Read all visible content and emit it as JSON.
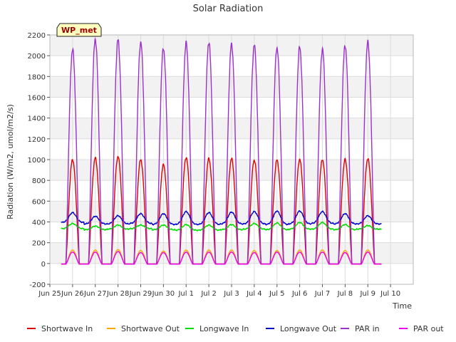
{
  "chart_data": {
    "type": "line",
    "title": "Solar Radiation",
    "xlabel": "Time",
    "ylabel": "Radiation (W/m2, umol/m2/s)",
    "station_label": "WP_met",
    "xlim": [
      0,
      16
    ],
    "ylim": [
      -200,
      2200
    ],
    "x_ticks": [
      {
        "x": 0,
        "label": "Jun 25"
      },
      {
        "x": 1,
        "label": "Jun 26"
      },
      {
        "x": 2,
        "label": "Jun 27"
      },
      {
        "x": 3,
        "label": "Jun 28"
      },
      {
        "x": 4,
        "label": "Jun 29"
      },
      {
        "x": 5,
        "label": "Jun 30"
      },
      {
        "x": 6,
        "label": "Jul 1"
      },
      {
        "x": 7,
        "label": "Jul 2"
      },
      {
        "x": 8,
        "label": "Jul 3"
      },
      {
        "x": 9,
        "label": "Jul 4"
      },
      {
        "x": 10,
        "label": "Jul 5"
      },
      {
        "x": 11,
        "label": "Jul 6"
      },
      {
        "x": 12,
        "label": "Jul 7"
      },
      {
        "x": 13,
        "label": "Jul 8"
      },
      {
        "x": 14,
        "label": "Jul 9"
      },
      {
        "x": 15,
        "label": "Jul 10"
      }
    ],
    "y_ticks": [
      -200,
      0,
      200,
      400,
      600,
      800,
      1000,
      1200,
      1400,
      1600,
      1800,
      2000,
      2200
    ],
    "grid": true,
    "legend_position": "bottom",
    "day_centers": [
      1,
      2,
      3,
      4,
      5,
      6,
      7,
      8,
      9,
      10,
      11,
      12,
      13,
      14
    ],
    "series": [
      {
        "name": "Shortwave In",
        "color": "#dd0000",
        "kind": "diurnal",
        "half_width": 0.3,
        "peaks": [
          1000,
          1015,
          1030,
          1000,
          950,
          1020,
          1010,
          1010,
          995,
          995,
          1000,
          1000,
          1000,
          1010
        ]
      },
      {
        "name": "Shortwave Out",
        "color": "#ffa500",
        "kind": "diurnal",
        "half_width": 0.28,
        "peaks": [
          130,
          130,
          135,
          125,
          120,
          130,
          130,
          130,
          125,
          125,
          130,
          130,
          125,
          130
        ]
      },
      {
        "name": "Longwave In",
        "color": "#00dd00",
        "kind": "daily",
        "night": [
          335,
          325,
          330,
          335,
          325,
          320,
          320,
          325,
          330,
          325,
          330,
          330,
          325,
          330
        ],
        "peaks": [
          385,
          360,
          370,
          370,
          370,
          375,
          370,
          375,
          385,
          390,
          395,
          395,
          375,
          365
        ]
      },
      {
        "name": "Longwave Out",
        "color": "#0000cc",
        "kind": "daily",
        "night": [
          395,
          380,
          380,
          385,
          375,
          375,
          375,
          380,
          380,
          375,
          380,
          385,
          380,
          380
        ],
        "peaks": [
          490,
          455,
          460,
          480,
          480,
          500,
          490,
          495,
          500,
          505,
          505,
          500,
          480,
          460
        ]
      },
      {
        "name": "PAR in",
        "color": "#9932cc",
        "kind": "diurnal",
        "half_width": 0.3,
        "peaks": [
          2060,
          2160,
          2150,
          2130,
          2070,
          2120,
          2130,
          2110,
          2100,
          2080,
          2080,
          2060,
          2100,
          2130
        ]
      },
      {
        "name": "PAR out",
        "color": "#ee00ee",
        "kind": "diurnal",
        "half_width": 0.28,
        "peaks": [
          110,
          110,
          115,
          105,
          105,
          110,
          110,
          110,
          105,
          110,
          110,
          110,
          105,
          110
        ]
      }
    ]
  }
}
